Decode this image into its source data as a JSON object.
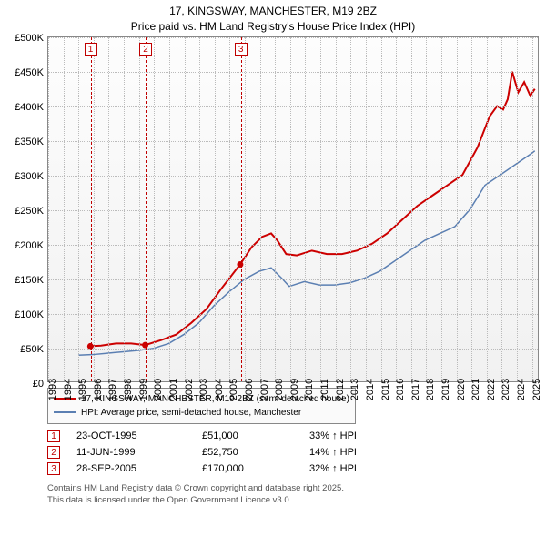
{
  "title": {
    "line1": "17, KINGSWAY, MANCHESTER, M19 2BZ",
    "line2": "Price paid vs. HM Land Registry's House Price Index (HPI)"
  },
  "chart": {
    "type": "line",
    "background_gradient": [
      "#fdfdfd",
      "#f1f1f1"
    ],
    "grid_color": "#bbbbbb",
    "border_color": "#888888",
    "xlim": [
      1993,
      2025.5
    ],
    "ylim": [
      0,
      500000
    ],
    "ytick_step": 50000,
    "ytick_labels": [
      "£0",
      "£50K",
      "£100K",
      "£150K",
      "£200K",
      "£250K",
      "£300K",
      "£350K",
      "£400K",
      "£450K",
      "£500K"
    ],
    "xtick_step": 1,
    "xtick_labels": [
      "1993",
      "1994",
      "1995",
      "1996",
      "1997",
      "1998",
      "1999",
      "2000",
      "2001",
      "2002",
      "2003",
      "2004",
      "2005",
      "2006",
      "2007",
      "2008",
      "2009",
      "2010",
      "2011",
      "2012",
      "2013",
      "2014",
      "2015",
      "2016",
      "2017",
      "2018",
      "2019",
      "2020",
      "2021",
      "2022",
      "2023",
      "2024",
      "2025"
    ],
    "series": [
      {
        "name": "17, KINGSWAY, MANCHESTER, M19 2BZ (semi-detached house)",
        "color": "#cc0000",
        "width": 2,
        "points": [
          [
            1995.8,
            51000
          ],
          [
            1996.5,
            52000
          ],
          [
            1997.5,
            55000
          ],
          [
            1998.5,
            55000
          ],
          [
            1999.44,
            52750
          ],
          [
            2000.5,
            60000
          ],
          [
            2001.5,
            68000
          ],
          [
            2002.5,
            85000
          ],
          [
            2003.5,
            105000
          ],
          [
            2004.5,
            135000
          ],
          [
            2005.74,
            170000
          ],
          [
            2006.5,
            195000
          ],
          [
            2007.2,
            210000
          ],
          [
            2007.8,
            215000
          ],
          [
            2008.2,
            205000
          ],
          [
            2008.8,
            185000
          ],
          [
            2009.5,
            183000
          ],
          [
            2010.5,
            190000
          ],
          [
            2011.5,
            185000
          ],
          [
            2012.5,
            185000
          ],
          [
            2013.5,
            190000
          ],
          [
            2014.5,
            200000
          ],
          [
            2015.5,
            215000
          ],
          [
            2016.5,
            235000
          ],
          [
            2017.5,
            255000
          ],
          [
            2018.5,
            270000
          ],
          [
            2019.5,
            285000
          ],
          [
            2020.5,
            300000
          ],
          [
            2021.5,
            340000
          ],
          [
            2022.3,
            385000
          ],
          [
            2022.8,
            400000
          ],
          [
            2023.2,
            395000
          ],
          [
            2023.5,
            410000
          ],
          [
            2023.8,
            450000
          ],
          [
            2024.2,
            420000
          ],
          [
            2024.6,
            435000
          ],
          [
            2025.0,
            415000
          ],
          [
            2025.3,
            425000
          ]
        ],
        "markers": [
          [
            1995.8,
            51000
          ],
          [
            1999.44,
            52750
          ],
          [
            2005.74,
            170000
          ]
        ]
      },
      {
        "name": "HPI: Average price, semi-detached house, Manchester",
        "color": "#5b7fb2",
        "width": 1.5,
        "points": [
          [
            1995.0,
            38000
          ],
          [
            1996.0,
            39000
          ],
          [
            1997.0,
            41000
          ],
          [
            1998.0,
            43000
          ],
          [
            1999.0,
            45000
          ],
          [
            2000.0,
            48000
          ],
          [
            2001.0,
            55000
          ],
          [
            2002.0,
            68000
          ],
          [
            2003.0,
            85000
          ],
          [
            2004.0,
            110000
          ],
          [
            2005.0,
            130000
          ],
          [
            2006.0,
            148000
          ],
          [
            2007.0,
            160000
          ],
          [
            2007.8,
            165000
          ],
          [
            2008.5,
            150000
          ],
          [
            2009.0,
            138000
          ],
          [
            2010.0,
            145000
          ],
          [
            2011.0,
            140000
          ],
          [
            2012.0,
            140000
          ],
          [
            2013.0,
            143000
          ],
          [
            2014.0,
            150000
          ],
          [
            2015.0,
            160000
          ],
          [
            2016.0,
            175000
          ],
          [
            2017.0,
            190000
          ],
          [
            2018.0,
            205000
          ],
          [
            2019.0,
            215000
          ],
          [
            2020.0,
            225000
          ],
          [
            2021.0,
            250000
          ],
          [
            2022.0,
            285000
          ],
          [
            2023.0,
            300000
          ],
          [
            2024.0,
            315000
          ],
          [
            2025.0,
            330000
          ],
          [
            2025.3,
            335000
          ]
        ]
      }
    ],
    "annotations": [
      {
        "label": "1",
        "x": 1995.8
      },
      {
        "label": "2",
        "x": 1999.44
      },
      {
        "label": "3",
        "x": 2005.74
      }
    ],
    "annotation_color": "#cc0000"
  },
  "legend": {
    "items": [
      {
        "color": "#cc0000",
        "label": "17, KINGSWAY, MANCHESTER, M19 2BZ (semi-detached house)"
      },
      {
        "color": "#5b7fb2",
        "label": "HPI: Average price, semi-detached house, Manchester"
      }
    ]
  },
  "sales": [
    {
      "n": "1",
      "date": "23-OCT-1995",
      "price": "£51,000",
      "diff": "33% ↑ HPI"
    },
    {
      "n": "2",
      "date": "11-JUN-1999",
      "price": "£52,750",
      "diff": "14% ↑ HPI"
    },
    {
      "n": "3",
      "date": "28-SEP-2005",
      "price": "£170,000",
      "diff": "32% ↑ HPI"
    }
  ],
  "footer": {
    "line1": "Contains HM Land Registry data © Crown copyright and database right 2025.",
    "line2": "This data is licensed under the Open Government Licence v3.0."
  }
}
